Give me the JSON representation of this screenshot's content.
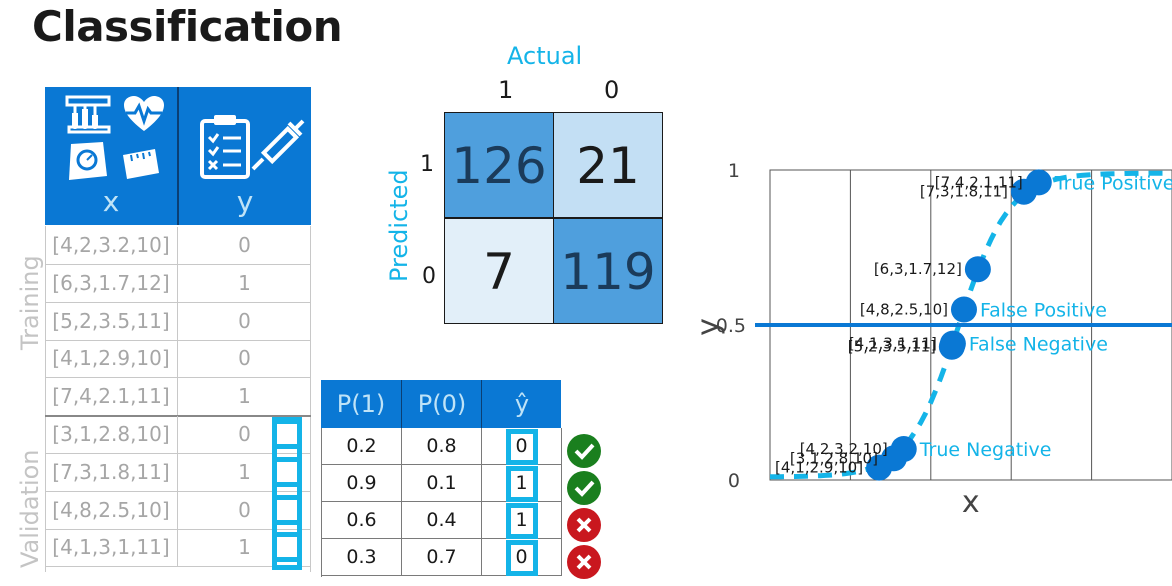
{
  "title": "Classification",
  "data_table": {
    "x_label": "x",
    "y_label": "y",
    "training_label": "Training",
    "validation_label": "Validation",
    "training_rows": [
      {
        "x": "[4,2,3.2,10]",
        "y": "0"
      },
      {
        "x": "[6,3,1.7,12]",
        "y": "1"
      },
      {
        "x": "[5,2,3.5,11]",
        "y": "0"
      },
      {
        "x": "[4,1,2.9,10]",
        "y": "0"
      },
      {
        "x": "[7,4,2.1,11]",
        "y": "1"
      }
    ],
    "validation_rows": [
      {
        "x": "[3,1,2.8,10]",
        "y": "0"
      },
      {
        "x": "[7,3,1.8,11]",
        "y": "1"
      },
      {
        "x": "[4,8,2.5,10]",
        "y": "0"
      },
      {
        "x": "[4,1,3,1,11]",
        "y": "1"
      }
    ],
    "icons": [
      "test-tubes-icon",
      "heart-rate-icon",
      "scale-icon",
      "tape-measure-icon",
      "clipboard-icon",
      "syringe-icon"
    ]
  },
  "confusion_matrix": {
    "actual_label": "Actual",
    "predicted_label": "Predicted",
    "col_labels": [
      "1",
      "0"
    ],
    "row_labels": [
      "1",
      "0"
    ],
    "cells": [
      [
        "126",
        "21"
      ],
      [
        "7",
        "119"
      ]
    ],
    "colors": {
      "dark": "#4f9fdd",
      "light": "#c3dff4",
      "lighter": "#e2eff9"
    }
  },
  "prob_table": {
    "headers": [
      "P(1)",
      "P(0)",
      "ŷ"
    ],
    "rows": [
      {
        "p1": "0.2",
        "p0": "0.8",
        "yhat": "0",
        "correct": true
      },
      {
        "p1": "0.9",
        "p0": "0.1",
        "yhat": "1",
        "correct": true
      },
      {
        "p1": "0.6",
        "p0": "0.4",
        "yhat": "1",
        "correct": false
      },
      {
        "p1": "0.3",
        "p0": "0.7",
        "yhat": "0",
        "correct": false
      }
    ]
  },
  "chart_data": {
    "type": "scatter",
    "xlabel": "x",
    "ylabel": "y",
    "yticks": [
      "0",
      "0.5",
      "1"
    ],
    "ylim": [
      0,
      1
    ],
    "threshold": 0.5,
    "threshold_label": "0.5",
    "curve": "sigmoid",
    "colors": {
      "point": "#0a78d4",
      "curve": "#14b4e8",
      "threshold": "#0a78d4",
      "annotation": "#14b4e8"
    },
    "points": [
      {
        "label": "[4,1,2.9,10]",
        "y": 0.04
      },
      {
        "label": "[3,1,2,8,10]",
        "y": 0.07
      },
      {
        "label": "[4,2,3,2,10]",
        "y": 0.1
      },
      {
        "label": "[4,1,3,1,11]",
        "y": 0.44
      },
      {
        "label": "[5,2,3.5,11]",
        "y": 0.43
      },
      {
        "label": "[4,8,2.5,10]",
        "y": 0.55
      },
      {
        "label": "[6,3,1.7,12]",
        "y": 0.68
      },
      {
        "label": "[7,3,1.8,11]",
        "y": 0.93
      },
      {
        "label": "[7,4,2.1,11]",
        "y": 0.96
      }
    ],
    "annotations": [
      "True Positive",
      "False Positive",
      "False Negative",
      "True Negative"
    ]
  }
}
